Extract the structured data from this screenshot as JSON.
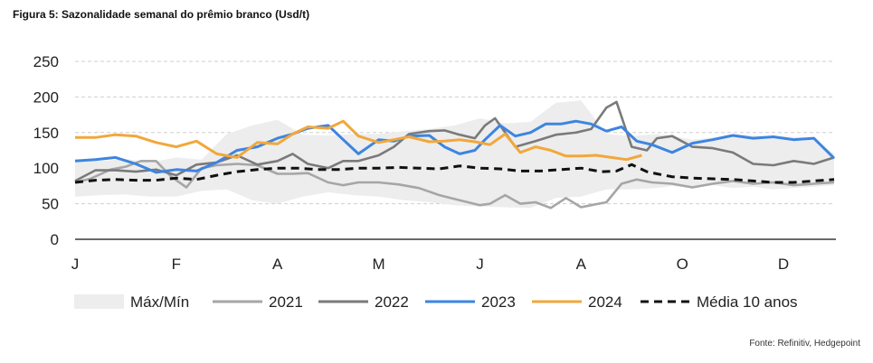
{
  "title": "Figura 5: Sazonalidade semanal do prêmio branco (Usd/t)",
  "source": "Fonte: Refinitiv, Hedgepoint",
  "colors": {
    "band": "#ededed",
    "y2021": "#a6a6a6",
    "y2022": "#7a7a7a",
    "y2023": "#3d85e0",
    "y2024": "#f2a73b",
    "avg": "#111111",
    "grid": "#cfcfcf"
  },
  "chart_data": {
    "type": "line",
    "title": "Figura 5: Sazonalidade semanal do prêmio branco (Usd/t)",
    "xlabel": "",
    "ylabel": "",
    "ylim": [
      0,
      250
    ],
    "yticks": [
      0,
      50,
      100,
      150,
      200,
      250
    ],
    "xlim": [
      0,
      11.8
    ],
    "months": [
      "J",
      "F",
      "A",
      "M",
      "J",
      "A",
      "O",
      "D"
    ],
    "month_positions": [
      0,
      2,
      4,
      6,
      8,
      10,
      12,
      14
    ],
    "grid": "horizontal dashed",
    "legend_position": "bottom",
    "band": {
      "name": "Máx/Mín",
      "x": [
        0,
        0.5,
        1,
        1.5,
        2,
        2.5,
        3,
        3.5,
        4,
        4.5,
        5,
        5.5,
        6,
        6.5,
        7,
        7.5,
        8,
        8.5,
        9,
        9.5,
        10,
        10.5,
        11,
        11.5,
        11.8
      ],
      "upper": [
        112,
        110,
        113,
        108,
        115,
        112,
        148,
        160,
        168,
        147,
        146,
        148,
        148,
        152,
        155,
        160,
        170,
        163,
        165,
        192,
        195,
        148,
        145,
        148,
        145
      ],
      "lower": [
        60,
        62,
        63,
        60,
        60,
        68,
        70,
        55,
        50,
        60,
        66,
        62,
        60,
        55,
        52,
        48,
        46,
        45,
        44,
        58,
        60,
        70,
        70,
        72,
        75
      ]
    },
    "series": [
      {
        "name": "2021",
        "x": [
          0,
          0.3,
          0.7,
          1.0,
          1.3,
          1.6,
          1.9,
          2.2,
          2.5,
          2.8,
          3.2,
          3.6,
          4.0,
          4.3,
          4.6,
          5.0,
          5.3,
          5.6,
          6.0,
          6.4,
          6.8,
          7.2,
          7.6,
          8.0,
          8.2,
          8.5,
          8.8,
          9.1,
          9.4,
          9.7,
          10.0,
          10.2,
          10.5,
          10.8,
          11.1,
          11.4,
          11.8
        ],
        "values": [
          80,
          85,
          98,
          102,
          110,
          110,
          88,
          73,
          100,
          104,
          106,
          104,
          92,
          92,
          93,
          80,
          76,
          80,
          80,
          77,
          72,
          62,
          55,
          48,
          50,
          62,
          50,
          52,
          44,
          58,
          45,
          48,
          52,
          78,
          84,
          80,
          78
        ]
      },
      {
        "name": "2022",
        "x": [
          0,
          0.4,
          0.8,
          1.2,
          1.6,
          2.0,
          2.4,
          2.8,
          3.2,
          3.6,
          4.0,
          4.3,
          4.6,
          5.0,
          5.3,
          5.6,
          6.0,
          6.3,
          6.6,
          7.0,
          7.3,
          7.6,
          7.9,
          8.1,
          8.3,
          8.7,
          9.1,
          9.5,
          9.9,
          10.2,
          10.5,
          10.7,
          11.0,
          11.3,
          11.5,
          11.8
        ],
        "values": [
          82,
          97,
          97,
          95,
          98,
          90,
          105,
          108,
          118,
          105,
          110,
          120,
          106,
          100,
          110,
          110,
          118,
          130,
          148,
          152,
          153,
          147,
          142,
          160,
          170,
          130,
          138,
          147,
          150,
          155,
          185,
          193,
          130,
          125,
          142,
          145
        ]
      },
      {
        "name": "2023",
        "x": [
          0,
          0.4,
          0.8,
          1.2,
          1.6,
          2.0,
          2.4,
          2.8,
          3.2,
          3.6,
          4.0,
          4.3,
          4.6,
          5.0,
          5.3,
          5.6,
          6.0,
          6.3,
          6.6,
          7.0,
          7.3,
          7.6,
          7.9,
          8.1,
          8.4,
          8.7,
          9.0,
          9.3,
          9.6,
          9.9,
          10.2,
          10.5,
          10.8,
          11.1,
          11.4,
          11.8
        ],
        "values": [
          110,
          112,
          115,
          106,
          94,
          98,
          96,
          108,
          125,
          130,
          142,
          148,
          156,
          160,
          140,
          120,
          140,
          138,
          145,
          146,
          130,
          120,
          125,
          140,
          160,
          145,
          150,
          162,
          162,
          166,
          162,
          152,
          158,
          138,
          133,
          122
        ]
      },
      {
        "name": "2024",
        "x": [
          0,
          0.4,
          0.8,
          1.2,
          1.6,
          2.0,
          2.4,
          2.8,
          3.2,
          3.6,
          4.0,
          4.3,
          4.6,
          5.0,
          5.3,
          5.6,
          6.0,
          6.3,
          6.6,
          7.0,
          7.3,
          7.6,
          7.9,
          8.2,
          8.5,
          8.8,
          9.1,
          9.4,
          9.7,
          10.0,
          10.3,
          10.6,
          10.9,
          11.2
        ],
        "values": [
          143,
          143,
          147,
          145,
          136,
          130,
          138,
          120,
          115,
          136,
          134,
          148,
          158,
          156,
          166,
          145,
          136,
          140,
          144,
          137,
          138,
          140,
          137,
          133,
          148,
          122,
          130,
          125,
          117,
          117,
          118,
          115,
          112,
          118
        ]
      },
      {
        "name": "Média 10 anos",
        "x": [
          0,
          0.4,
          0.8,
          1.2,
          1.6,
          2.0,
          2.4,
          2.8,
          3.2,
          3.6,
          4.0,
          4.4,
          4.8,
          5.2,
          5.6,
          6.0,
          6.4,
          6.8,
          7.2,
          7.6,
          8.0,
          8.4,
          8.8,
          9.2,
          9.6,
          10.0,
          10.4,
          10.7,
          11.0,
          11.3,
          11.5,
          11.8
        ],
        "values": [
          80,
          83,
          84,
          83,
          83,
          86,
          84,
          90,
          95,
          98,
          100,
          100,
          98,
          98,
          100,
          100,
          101,
          100,
          99,
          103,
          100,
          99,
          96,
          96,
          98,
          100,
          95,
          96,
          105,
          95,
          92,
          88
        ]
      }
    ],
    "second_half": {
      "note": "continuation series for Oct-Dec",
      "x": [
        11.8,
        12.2,
        12.6,
        13.0,
        13.4,
        13.8,
        14.2,
        14.6,
        15.0
      ],
      "2021": [
        78,
        73,
        78,
        82,
        78,
        80,
        76,
        78,
        80
      ],
      "2022": [
        145,
        130,
        128,
        122,
        106,
        104,
        110,
        106,
        115
      ],
      "2023": [
        122,
        135,
        140,
        146,
        142,
        144,
        140,
        142,
        114
      ],
      "avg": [
        88,
        86,
        85,
        84,
        82,
        80,
        80,
        82,
        84
      ],
      "band_upper": [
        145,
        140,
        143,
        148,
        146,
        145,
        144,
        142,
        120
      ],
      "band_lower": [
        75,
        72,
        76,
        72,
        74,
        70,
        72,
        74,
        76
      ]
    }
  },
  "legend": [
    {
      "key": "band",
      "label": "Máx/Mín"
    },
    {
      "key": "y2021",
      "label": "2021"
    },
    {
      "key": "y2022",
      "label": "2022"
    },
    {
      "key": "y2023",
      "label": "2023"
    },
    {
      "key": "y2024",
      "label": "2024"
    },
    {
      "key": "avg",
      "label": "Média 10 anos"
    }
  ]
}
